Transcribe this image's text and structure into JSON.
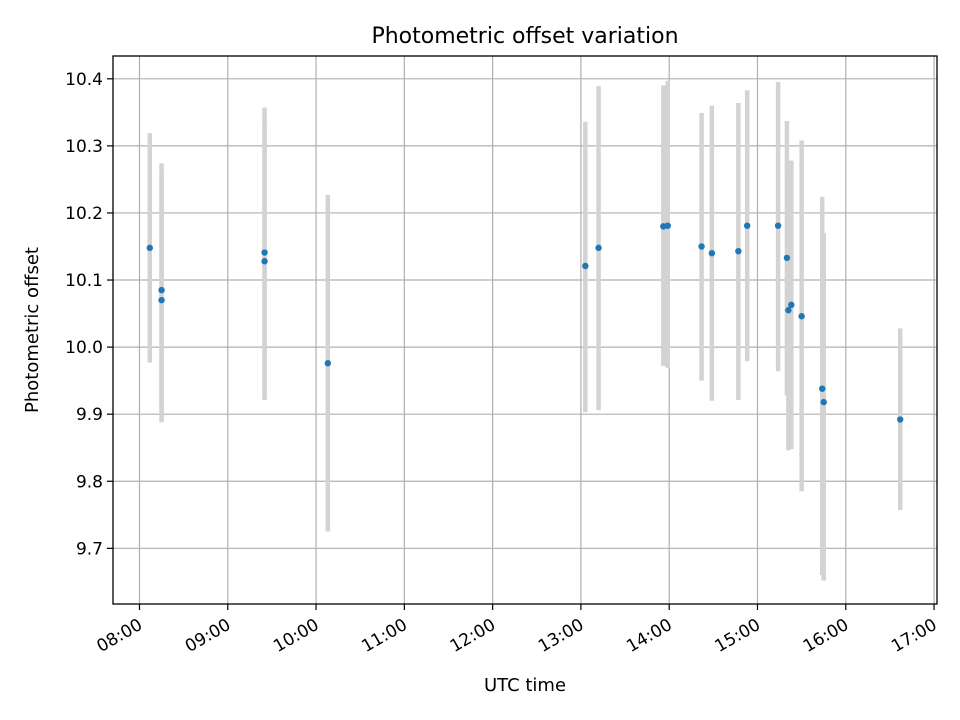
{
  "chart_data": {
    "type": "scatter",
    "title": "Photometric offset variation",
    "xlabel": "UTC time",
    "ylabel": "Photometric offset",
    "x_tick_labels": [
      "08:00",
      "09:00",
      "10:00",
      "11:00",
      "12:00",
      "13:00",
      "14:00",
      "15:00",
      "16:00",
      "17:00"
    ],
    "y_tick_labels": [
      "9.7",
      "9.8",
      "9.9",
      "10.0",
      "10.1",
      "10.2",
      "10.3",
      "10.4"
    ],
    "xlim": [
      "07:42",
      "17:02"
    ],
    "ylim": [
      9.617,
      10.434
    ],
    "grid": true,
    "x_ticks": [
      "08:00",
      "09:00",
      "10:00",
      "11:00",
      "12:00",
      "13:00",
      "14:00",
      "15:00",
      "16:00",
      "17:00"
    ],
    "y_ticks": [
      9.7,
      9.8,
      9.9,
      10.0,
      10.1,
      10.2,
      10.3,
      10.4
    ],
    "marker_color": "#1f77b4",
    "errorbar_color": "#d3d3d3",
    "points": [
      {
        "x": "08:07",
        "y": 10.148,
        "ylow": 9.977,
        "yhigh": 10.319
      },
      {
        "x": "08:15",
        "y": 10.085,
        "ylow": 9.888,
        "yhigh": 10.274
      },
      {
        "x": "08:15",
        "y": 10.07,
        "ylow": 9.897,
        "yhigh": 10.251
      },
      {
        "x": "09:25",
        "y": 10.141,
        "ylow": 9.925,
        "yhigh": 10.357
      },
      {
        "x": "09:25",
        "y": 10.128,
        "ylow": 9.921,
        "yhigh": 10.335
      },
      {
        "x": "10:08",
        "y": 9.976,
        "ylow": 9.725,
        "yhigh": 10.227
      },
      {
        "x": "13:03",
        "y": 10.121,
        "ylow": 9.903,
        "yhigh": 10.336
      },
      {
        "x": "13:12",
        "y": 10.148,
        "ylow": 9.906,
        "yhigh": 10.389
      },
      {
        "x": "13:56",
        "y": 10.18,
        "ylow": 9.972,
        "yhigh": 10.39
      },
      {
        "x": "13:59",
        "y": 10.181,
        "ylow": 9.969,
        "yhigh": 10.397
      },
      {
        "x": "14:22",
        "y": 10.15,
        "ylow": 9.95,
        "yhigh": 10.349
      },
      {
        "x": "14:29",
        "y": 10.14,
        "ylow": 9.92,
        "yhigh": 10.36
      },
      {
        "x": "14:47",
        "y": 10.143,
        "ylow": 9.921,
        "yhigh": 10.364
      },
      {
        "x": "14:53",
        "y": 10.181,
        "ylow": 9.979,
        "yhigh": 10.383
      },
      {
        "x": "15:14",
        "y": 10.181,
        "ylow": 9.964,
        "yhigh": 10.395
      },
      {
        "x": "15:20",
        "y": 10.133,
        "ylow": 9.928,
        "yhigh": 10.337
      },
      {
        "x": "15:21",
        "y": 10.055,
        "ylow": 9.846,
        "yhigh": 10.264
      },
      {
        "x": "15:23",
        "y": 10.063,
        "ylow": 9.848,
        "yhigh": 10.278
      },
      {
        "x": "15:30",
        "y": 10.046,
        "ylow": 9.785,
        "yhigh": 10.308
      },
      {
        "x": "15:44",
        "y": 9.938,
        "ylow": 9.66,
        "yhigh": 10.224
      },
      {
        "x": "15:45",
        "y": 9.918,
        "ylow": 9.652,
        "yhigh": 10.17
      },
      {
        "x": "16:37",
        "y": 9.892,
        "ylow": 9.757,
        "yhigh": 10.028
      }
    ]
  }
}
